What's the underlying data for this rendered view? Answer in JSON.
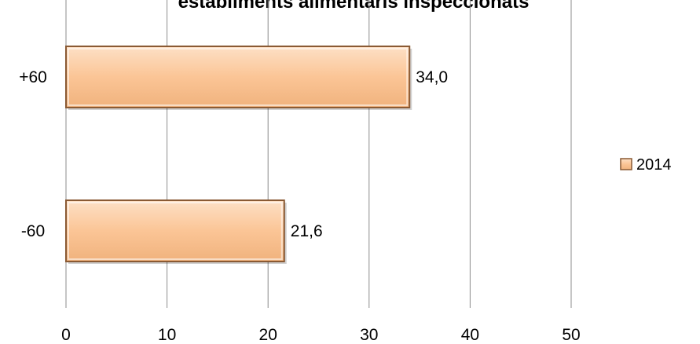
{
  "chart_data": {
    "type": "bar",
    "orientation": "horizontal",
    "title": "establiments alimentaris inspeccionats",
    "categories": [
      "+60",
      "-60"
    ],
    "series": [
      {
        "name": "2014",
        "values": [
          34.0,
          21.6
        ]
      }
    ],
    "data_labels": [
      "34,0",
      "21,6"
    ],
    "xlim": [
      0,
      50
    ],
    "xticks": [
      0,
      10,
      20,
      30,
      40,
      50
    ],
    "xtick_labels": [
      "0",
      "10",
      "20",
      "30",
      "40",
      "50"
    ],
    "grid": "vertical",
    "legend_position": "right",
    "colors": {
      "bar_fill": "#fbc596",
      "bar_edge": "#8a5a34",
      "grid": "#8c8c8c"
    }
  }
}
